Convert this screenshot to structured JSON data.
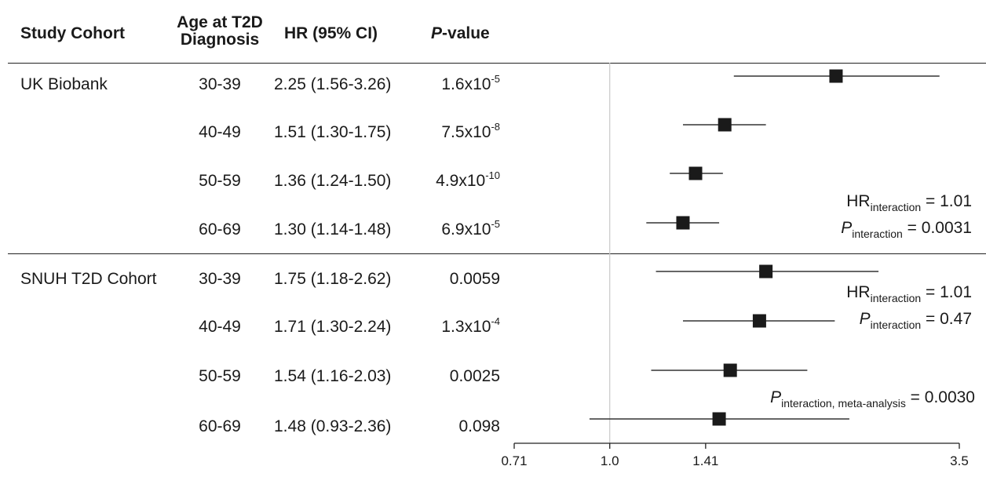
{
  "header": {
    "study_cohort": "Study Cohort",
    "age_line1": "Age at T2D",
    "age_line2": "Diagnosis",
    "hr_ci": "HR (95% CI)",
    "p_italic": "P",
    "p_rest": "-value"
  },
  "rows": [
    {
      "cohort": "UK Biobank",
      "age": "30-39",
      "hr_text": "2.25 (1.56-3.26)",
      "p_base": "1.6x10",
      "p_exp": "-5"
    },
    {
      "cohort": "",
      "age": "40-49",
      "hr_text": "1.51 (1.30-1.75)",
      "p_base": "7.5x10",
      "p_exp": "-8"
    },
    {
      "cohort": "",
      "age": "50-59",
      "hr_text": "1.36 (1.24-1.50)",
      "p_base": "4.9x10",
      "p_exp": "-10"
    },
    {
      "cohort": "",
      "age": "60-69",
      "hr_text": "1.30 (1.14-1.48)",
      "p_base": "6.9x10",
      "p_exp": "-5"
    },
    {
      "cohort": "SNUH T2D Cohort",
      "age": "30-39",
      "hr_text": "1.75 (1.18-2.62)",
      "p_base": "0.0059",
      "p_exp": ""
    },
    {
      "cohort": "",
      "age": "40-49",
      "hr_text": "1.71 (1.30-2.24)",
      "p_base": "1.3x10",
      "p_exp": "-4"
    },
    {
      "cohort": "",
      "age": "50-59",
      "hr_text": "1.54 (1.16-2.03)",
      "p_base": "0.0025",
      "p_exp": ""
    },
    {
      "cohort": "",
      "age": "60-69",
      "hr_text": "1.48 (0.93-2.36)",
      "p_base": "0.098",
      "p_exp": ""
    }
  ],
  "annotations": {
    "uk_hr_main": "HR",
    "uk_hr_sub": "interaction",
    "uk_hr_val": " = 1.01",
    "uk_p_main": "P",
    "uk_p_sub": "interaction",
    "uk_p_val": " = 0.0031",
    "snuh_hr_main": "HR",
    "snuh_hr_sub": "interaction",
    "snuh_hr_val": " = 1.01",
    "snuh_p_main": "P",
    "snuh_p_sub": "interaction",
    "snuh_p_val": " = 0.47",
    "meta_p_main": "P",
    "meta_p_sub": "interaction, meta-analysis",
    "meta_p_val": " = 0.0030"
  },
  "chart_data": {
    "type": "forest",
    "x_scale": "log",
    "xlim": [
      0.71,
      3.5
    ],
    "x_ticks": [
      0.71,
      1.0,
      1.41,
      3.5
    ],
    "x_tick_labels": [
      "0.71",
      "1.0",
      "1.41",
      "3.5"
    ],
    "reference_line": 1.0,
    "points": [
      {
        "group": "UK Biobank",
        "age": "30-39",
        "hr": 2.25,
        "lo": 1.56,
        "hi": 3.26
      },
      {
        "group": "UK Biobank",
        "age": "40-49",
        "hr": 1.51,
        "lo": 1.3,
        "hi": 1.75
      },
      {
        "group": "UK Biobank",
        "age": "50-59",
        "hr": 1.36,
        "lo": 1.24,
        "hi": 1.5
      },
      {
        "group": "UK Biobank",
        "age": "60-69",
        "hr": 1.3,
        "lo": 1.14,
        "hi": 1.48
      },
      {
        "group": "SNUH T2D Cohort",
        "age": "30-39",
        "hr": 1.75,
        "lo": 1.18,
        "hi": 2.62
      },
      {
        "group": "SNUH T2D Cohort",
        "age": "40-49",
        "hr": 1.71,
        "lo": 1.3,
        "hi": 2.24
      },
      {
        "group": "SNUH T2D Cohort",
        "age": "50-59",
        "hr": 1.54,
        "lo": 1.16,
        "hi": 2.03
      },
      {
        "group": "SNUH T2D Cohort",
        "age": "60-69",
        "hr": 1.48,
        "lo": 0.93,
        "hi": 2.36
      }
    ],
    "colors": {
      "marker": "#1a1a1a",
      "ci_line": "#333333",
      "reference_line": "#c8c8c8",
      "axis": "#222222"
    }
  }
}
